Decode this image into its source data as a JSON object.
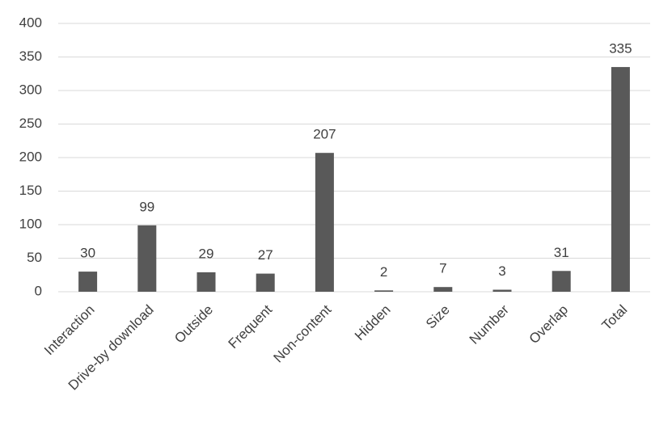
{
  "chart_data": {
    "type": "bar",
    "categories": [
      "Interaction",
      "Drive-by download",
      "Outside",
      "Frequent",
      "Non-content",
      "Hidden",
      "Size",
      "Number",
      "Overlap",
      "Total"
    ],
    "values": [
      30,
      99,
      29,
      27,
      207,
      2,
      7,
      3,
      31,
      335
    ],
    "color": "#595959",
    "ylim": [
      0,
      400
    ],
    "yticks": [
      0,
      50,
      100,
      150,
      200,
      250,
      300,
      350,
      400
    ],
    "grid": true,
    "data_labels": true
  }
}
